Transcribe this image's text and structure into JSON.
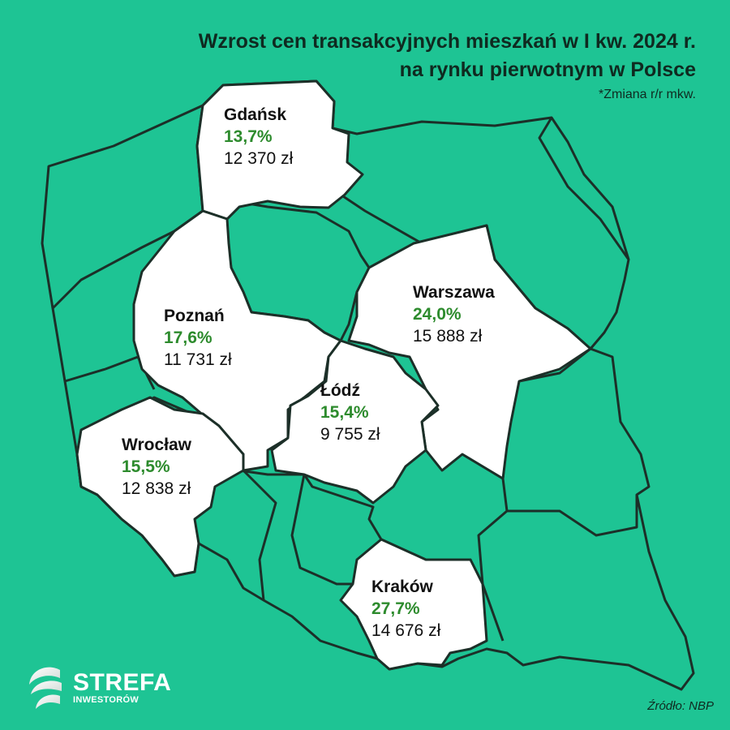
{
  "title": {
    "line1": "Wzrost cen transakcyjnych mieszkań w I kw. 2024 r.",
    "line2": "na rynku pierwotnym w Polsce",
    "note": "*Zmiana r/r mkw."
  },
  "colors": {
    "background": "#1ec494",
    "region_fill": "#1ec494",
    "highlight_fill": "#ffffff",
    "border": "#1c2f28",
    "percent_text": "#2d8b2d"
  },
  "cities": [
    {
      "name": "Gdańsk",
      "percent": "13,7%",
      "price": "12 370 zł"
    },
    {
      "name": "Poznań",
      "percent": "17,6%",
      "price": "11 731 zł"
    },
    {
      "name": "Warszawa",
      "percent": "24,0%",
      "price": "15 888 zł"
    },
    {
      "name": "Łódź",
      "percent": "15,4%",
      "price": "9 755 zł"
    },
    {
      "name": "Wrocław",
      "percent": "15,5%",
      "price": "12 838 zł"
    },
    {
      "name": "Kraków",
      "percent": "27,7%",
      "price": "14 676 zł"
    }
  ],
  "logo": {
    "main": "STREFA",
    "sub": "INWESTORÓW",
    "icon": "swirl-logo-icon"
  },
  "source": "Źródło: NBP"
}
